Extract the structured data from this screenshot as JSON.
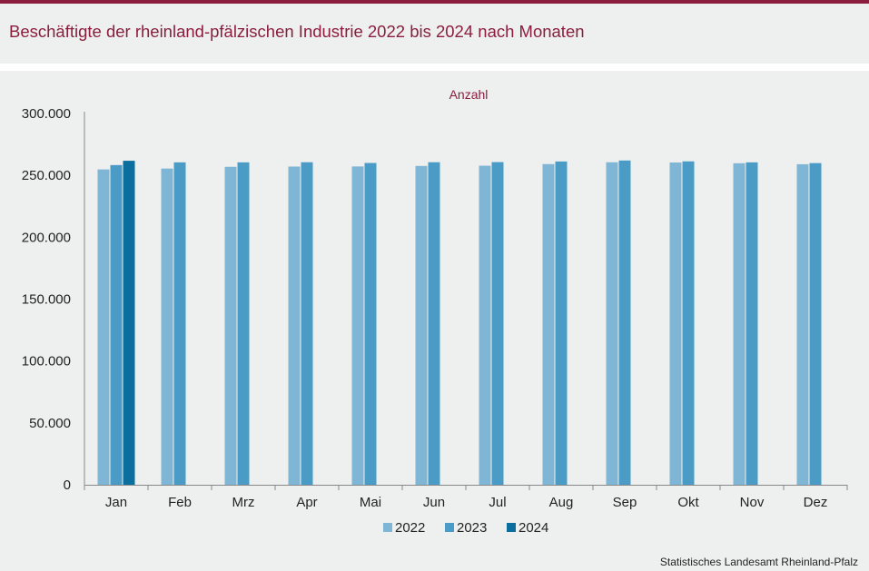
{
  "header": {
    "title": "Beschäftigte der rheinland-pfälzischen Industrie 2022 bis 2024 nach Monaten"
  },
  "footer": {
    "source": "Statistisches Landesamt  Rheinland-Pfalz"
  },
  "colors": {
    "accent": "#8b1e3f",
    "series_2022": "#7fb6d6",
    "series_2023": "#4a9cc6",
    "series_2024": "#0a6e9e"
  },
  "chart_data": {
    "type": "bar",
    "unit_label": "Anzahl",
    "categories": [
      "Jan",
      "Feb",
      "Mrz",
      "Apr",
      "Mai",
      "Jun",
      "Jul",
      "Aug",
      "Sep",
      "Okt",
      "Nov",
      "Dez"
    ],
    "series": [
      {
        "name": "2022",
        "values": [
          254800,
          255500,
          256900,
          257100,
          257200,
          257600,
          257800,
          259100,
          260600,
          260400,
          259800,
          259000
        ]
      },
      {
        "name": "2023",
        "values": [
          258300,
          260500,
          260500,
          260600,
          260000,
          260600,
          260700,
          261200,
          262000,
          261300,
          260500,
          259900
        ]
      },
      {
        "name": "2024",
        "values": [
          261800,
          null,
          null,
          null,
          null,
          null,
          null,
          null,
          null,
          null,
          null,
          null
        ]
      }
    ],
    "ylim": [
      0,
      300000
    ],
    "yticks": [
      0,
      50000,
      100000,
      150000,
      200000,
      250000,
      300000
    ],
    "ytick_labels": [
      "0",
      "50.000",
      "100.000",
      "150.000",
      "200.000",
      "250.000",
      "300.000"
    ],
    "grid": false,
    "legend_position": "bottom"
  }
}
